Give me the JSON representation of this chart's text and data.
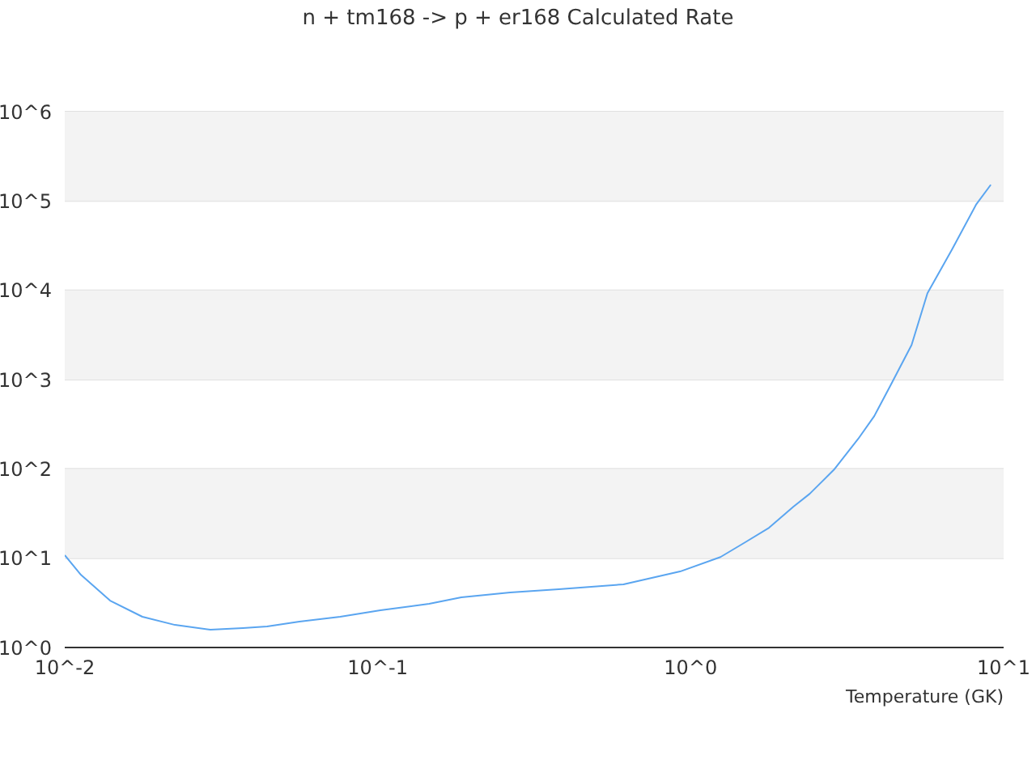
{
  "chart_data": {
    "type": "line",
    "title": "n + tm168 -> p + er168 Calculated Rate",
    "xlabel": "Temperature (GK)",
    "x": [
      0.01,
      0.01127,
      0.01396,
      0.0177,
      0.0225,
      0.0292,
      0.0371,
      0.0443,
      0.0562,
      0.0759,
      0.102,
      0.146,
      0.185,
      0.265,
      0.379,
      0.61,
      0.925,
      1.245,
      1.49,
      1.78,
      2.13,
      2.4,
      2.87,
      3.43,
      3.86,
      4.35,
      5.08,
      5.71,
      6.84,
      8.18,
      9.1
    ],
    "series": [
      {
        "color": "#5aa5f0",
        "values": [
          10.8,
          6.5,
          3.35,
          2.21,
          1.79,
          1.58,
          1.65,
          1.72,
          1.95,
          2.21,
          2.61,
          3.08,
          3.65,
          4.13,
          4.49,
          5.1,
          7.1,
          10.3,
          15,
          21.9,
          37.7,
          52.6,
          98,
          217,
          390,
          861,
          2440,
          9270,
          28600,
          92000,
          152000
        ]
      }
    ],
    "log": "xy",
    "xlim": [
      0.01,
      10
    ],
    "ylim": [
      1,
      1000000
    ],
    "xticks": [
      {
        "value": 0.01,
        "label": "10^-2"
      },
      {
        "value": 0.1,
        "label": "10^-1"
      },
      {
        "value": 1,
        "label": "10^0"
      },
      {
        "value": 10,
        "label": "10^1"
      }
    ],
    "yticks": [
      {
        "value": 1,
        "label": "10^0"
      },
      {
        "value": 10,
        "label": "10^1"
      },
      {
        "value": 100,
        "label": "10^2"
      },
      {
        "value": 1000,
        "label": "10^3"
      },
      {
        "value": 10000,
        "label": "10^4"
      },
      {
        "value": 100000,
        "label": "10^5"
      },
      {
        "value": 1000000,
        "label": "10^6"
      }
    ],
    "bands": [
      {
        "axis": "y",
        "from": 10,
        "to": 100,
        "color": "#f3f3f3"
      },
      {
        "axis": "y",
        "from": 1000,
        "to": 10000,
        "color": "#f3f3f3"
      },
      {
        "axis": "y",
        "from": 100000,
        "to": 1000000,
        "color": "#f3f3f3"
      }
    ],
    "grid": "y",
    "marker": "none",
    "line_style": "solid"
  }
}
